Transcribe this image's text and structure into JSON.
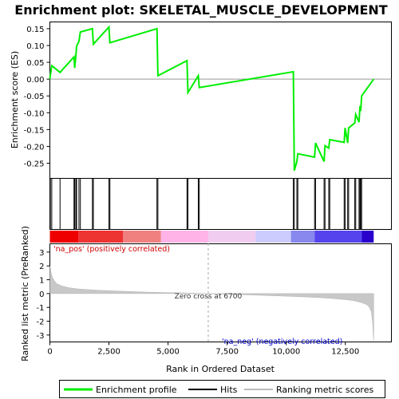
{
  "chart_data": {
    "type": "line",
    "title": "Enrichment plot: SKELETAL_MUSCLE_DEVELOPMENT",
    "top_panel": {
      "ylabel": "Enrichment score (ES)",
      "ylim": [
        -0.295,
        0.17
      ],
      "yticks": [
        0.15,
        0.1,
        0.05,
        0.0,
        -0.05,
        -0.1,
        -0.15,
        -0.2,
        -0.25
      ],
      "ytick_labels": [
        "0.15",
        "0.10",
        "0.05",
        "0.00",
        "-0.05",
        "-0.10",
        "-0.15",
        "-0.20",
        "-0.25"
      ],
      "series_color": "#00ee00",
      "x": [
        0,
        20,
        80,
        430,
        1020,
        1050,
        1100,
        1130,
        1230,
        1290,
        1800,
        1840,
        2500,
        2540,
        4530,
        4570,
        5800,
        5840,
        6280,
        6320,
        10300,
        10340,
        10450,
        10490,
        11200,
        11240,
        11600,
        11640,
        11800,
        11840,
        12450,
        12490,
        12600,
        12640,
        12900,
        12940,
        13080,
        13120,
        13150,
        13190,
        13700
      ],
      "y": [
        0.0,
        0.012,
        0.04,
        0.02,
        0.066,
        0.033,
        0.07,
        0.098,
        0.112,
        0.14,
        0.15,
        0.104,
        0.155,
        0.108,
        0.15,
        0.01,
        0.055,
        -0.04,
        0.01,
        -0.025,
        0.022,
        -0.272,
        -0.245,
        -0.222,
        -0.232,
        -0.19,
        -0.245,
        -0.198,
        -0.205,
        -0.18,
        -0.188,
        -0.145,
        -0.19,
        -0.145,
        -0.13,
        -0.105,
        -0.128,
        -0.08,
        -0.095,
        -0.05,
        0.0
      ]
    },
    "hits": [
      0,
      20,
      80,
      430,
      1020,
      1050,
      1100,
      1130,
      1230,
      1290,
      1800,
      1840,
      2500,
      2540,
      4530,
      4570,
      5800,
      5840,
      6280,
      6320,
      10300,
      10340,
      10450,
      10490,
      11200,
      11240,
      11600,
      11640,
      11800,
      11840,
      12450,
      12490,
      12600,
      12640,
      12900,
      12940,
      13080,
      13120,
      13150,
      13190
    ],
    "bottom_panel": {
      "ylabel": "Ranked list metric (PreRanked)",
      "xlabel": "Rank in Ordered Dataset",
      "xlim": [
        0,
        14450
      ],
      "ylim": [
        -3.5,
        3.6
      ],
      "yticks": [
        3,
        2,
        1,
        0,
        -1,
        -2,
        -3
      ],
      "ytick_labels": [
        "3",
        "2",
        "1",
        "0",
        "-1",
        "-2",
        "-3"
      ],
      "xticks": [
        0,
        2500,
        5000,
        7500,
        10000,
        12500
      ],
      "xtick_labels": [
        "0",
        "2,500",
        "5,000",
        "7,500",
        "10,000",
        "12,500"
      ],
      "metric_x": [
        0,
        50,
        100,
        200,
        300,
        500,
        800,
        1200,
        2000,
        3000,
        4000,
        5000,
        6000,
        6700,
        7500,
        8500,
        9500,
        10500,
        11500,
        12000,
        12500,
        12800,
        13000,
        13200,
        13400,
        13500,
        13600,
        13650,
        13700
      ],
      "metric_y": [
        2.0,
        1.5,
        1.2,
        0.9,
        0.7,
        0.55,
        0.42,
        0.33,
        0.24,
        0.17,
        0.11,
        0.07,
        0.03,
        0.0,
        -0.05,
        -0.1,
        -0.16,
        -0.22,
        -0.3,
        -0.36,
        -0.44,
        -0.5,
        -0.57,
        -0.66,
        -0.8,
        -0.95,
        -1.3,
        -2.0,
        -3.4
      ],
      "zero_cross_rank": 6700,
      "zero_cross_label": "Zero cross at 6700",
      "pos_label": "'na_pos' (positively correlated)",
      "neg_label": "'na_neg' (negatively correlated)"
    },
    "legend": {
      "placement": "bottom",
      "entries": [
        "Enrichment profile",
        "Hits",
        "Ranking metric scores"
      ],
      "colors": [
        "#00ee00",
        "#000000",
        "#bbbbbb"
      ]
    },
    "color_bar": {
      "stops": [
        {
          "rank": 0,
          "color": "#ee0000"
        },
        {
          "rank": 1200,
          "color": "#ee3333"
        },
        {
          "rank": 3100,
          "color": "#f08080"
        },
        {
          "rank": 4700,
          "color": "#ffb3e6"
        },
        {
          "rank": 6700,
          "color": "#f0ccf0"
        },
        {
          "rank": 8700,
          "color": "#ccccff"
        },
        {
          "rank": 10200,
          "color": "#8888ee"
        },
        {
          "rank": 11200,
          "color": "#5544ee"
        },
        {
          "rank": 13200,
          "color": "#2a00cc"
        }
      ]
    }
  }
}
